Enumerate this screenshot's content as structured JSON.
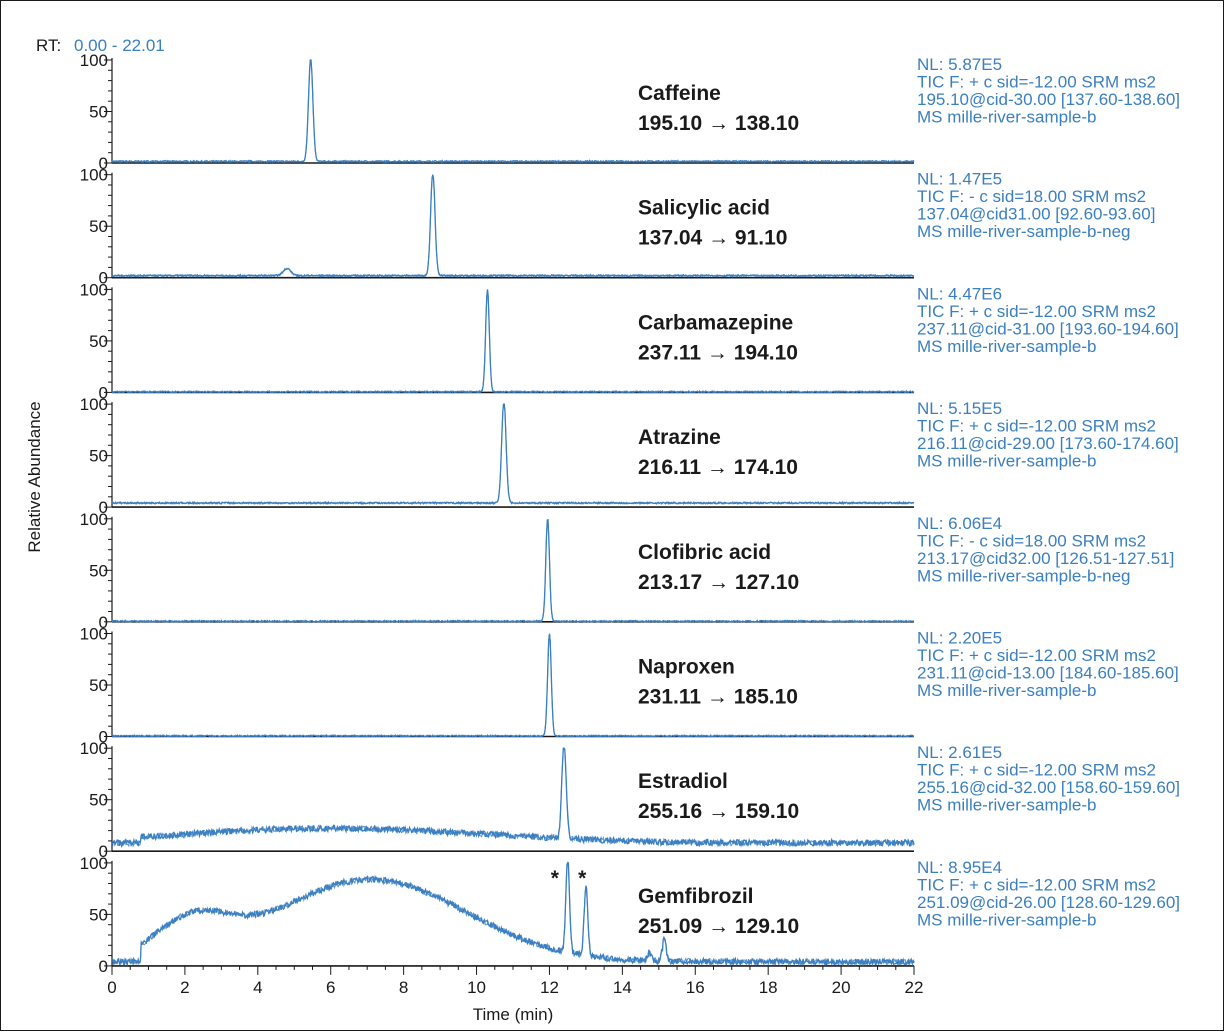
{
  "rt_label": "RT:",
  "rt_range": "0.00 - 22.01",
  "chart_data": {
    "type": "line",
    "xlabel": "Time (min)",
    "ylabel": "Relative Abundance",
    "xlim": [
      0,
      22
    ],
    "ylim": [
      0,
      100
    ],
    "x_ticks": [
      "0",
      "2",
      "4",
      "6",
      "8",
      "10",
      "12",
      "14",
      "16",
      "18",
      "20",
      "22"
    ],
    "y_ticks": [
      "0",
      "50",
      "100"
    ],
    "panels": [
      {
        "compound": "Caffeine",
        "transition": "195.10 → 138.10",
        "nl": "NL: 5.87E5",
        "filter": "TIC F: + c sid=-12.00  SRM ms2",
        "scan": "195.10@cid-30.00 [137.60-138.60]",
        "sample": "MS mille-river-sample-b",
        "baseline": 1.5,
        "peaks": [
          {
            "rt": 5.45,
            "height": 100,
            "width": 0.06
          }
        ]
      },
      {
        "compound": "Salicylic acid",
        "transition": "137.04 → 91.10",
        "nl": "NL: 1.47E5",
        "filter": "TIC F: - c sid=18.00  SRM ms2",
        "scan": "137.04@cid31.00 [92.60-93.60]",
        "sample": "MS mille-river-sample-b-neg",
        "baseline": 2,
        "peaks": [
          {
            "rt": 8.8,
            "height": 100,
            "width": 0.06
          },
          {
            "rt": 4.8,
            "height": 7,
            "width": 0.1
          }
        ]
      },
      {
        "compound": "Carbamazepine",
        "transition": "237.11 → 194.10",
        "nl": "NL: 4.47E6",
        "filter": "TIC F: + c sid=-12.00  SRM ms2",
        "scan": "237.11@cid-31.00 [193.60-194.60]",
        "sample": "MS mille-river-sample-b",
        "baseline": 0.5,
        "peaks": [
          {
            "rt": 10.3,
            "height": 100,
            "width": 0.05
          }
        ]
      },
      {
        "compound": "Atrazine",
        "transition": "216.11 → 174.10",
        "nl": "NL: 5.15E5",
        "filter": "TIC F: + c sid=-12.00  SRM ms2",
        "scan": "216.11@cid-29.00 [173.60-174.60]",
        "sample": "MS mille-river-sample-b",
        "baseline": 4,
        "peaks": [
          {
            "rt": 10.75,
            "height": 100,
            "width": 0.06
          }
        ]
      },
      {
        "compound": "Clofibric acid",
        "transition": "213.17 → 127.10",
        "nl": "NL: 6.06E4",
        "filter": "TIC F: - c sid=18.00  SRM ms2",
        "scan": "213.17@cid32.00 [126.51-127.51]",
        "sample": "MS mille-river-sample-b-neg",
        "baseline": 0.5,
        "peaks": [
          {
            "rt": 11.95,
            "height": 100,
            "width": 0.05
          }
        ]
      },
      {
        "compound": "Naproxen",
        "transition": "231.11 → 185.10",
        "nl": "NL: 2.20E5",
        "filter": "TIC F: + c sid=-12.00  SRM ms2",
        "scan": "231.11@cid-13.00 [184.60-185.60]",
        "sample": "MS mille-river-sample-b",
        "baseline": 0.5,
        "peaks": [
          {
            "rt": 12.0,
            "height": 100,
            "width": 0.05
          }
        ]
      },
      {
        "compound": "Estradiol",
        "transition": "255.16 → 159.10",
        "nl": "NL: 2.61E5",
        "filter": "TIC F: + c sid=-12.00  SRM ms2",
        "scan": "255.16@cid-32.00 [158.60-159.60]",
        "sample": "MS mille-river-sample-b",
        "baseline": 8,
        "hump": [
          {
            "center": 4.8,
            "height": 12,
            "width": 3.2
          },
          {
            "center": 9.5,
            "height": 6,
            "width": 3
          }
        ],
        "peaks": [
          {
            "rt": 12.4,
            "height": 92,
            "width": 0.06
          }
        ]
      },
      {
        "compound": "Gemfibrozil",
        "transition": "251.09 → 129.10",
        "nl": "NL: 8.95E4",
        "filter": "TIC F: + c sid=-12.00  SRM ms2",
        "scan": "251.09@cid-26.00 [128.60-129.60]",
        "sample": "MS mille-river-sample-b",
        "baseline": 4,
        "hump": [
          {
            "center": 7.1,
            "height": 80,
            "width": 2.6
          },
          {
            "center": 2.2,
            "height": 35,
            "width": 1.0
          }
        ],
        "peaks": [
          {
            "rt": 12.5,
            "height": 92,
            "width": 0.05
          },
          {
            "rt": 13.0,
            "height": 68,
            "width": 0.05
          },
          {
            "rt": 15.15,
            "height": 22,
            "width": 0.05
          },
          {
            "rt": 14.75,
            "height": 8,
            "width": 0.05
          }
        ],
        "markers": [
          {
            "rt": 12.2,
            "label": "*"
          },
          {
            "rt": 12.95,
            "label": "*"
          }
        ]
      }
    ]
  }
}
